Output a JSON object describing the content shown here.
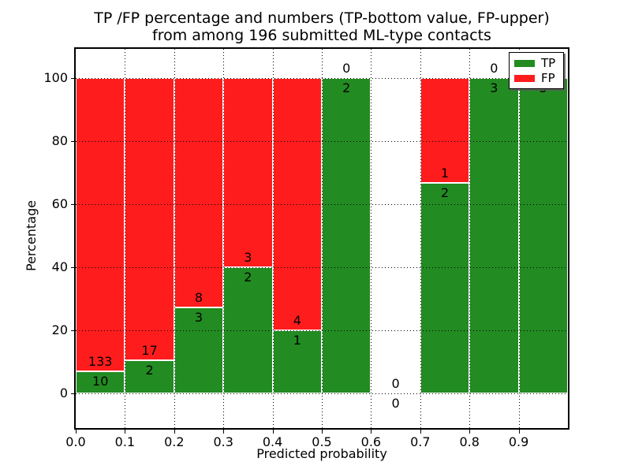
{
  "figure": {
    "title_line1": "TP /FP percentage and numbers (TP-bottom value, FP-upper)",
    "title_line2": "from among 196 submitted ML-type contacts",
    "xlabel": "Predicted probability",
    "ylabel": "Percentage"
  },
  "colors": {
    "tp": "#228b22",
    "fp": "#ff1c1c",
    "grid": "#000000",
    "frame": "#000000",
    "bar_edge": "#ffffff",
    "background": "#ffffff",
    "label_text": "#000000"
  },
  "legend": {
    "position": "upper right",
    "items": [
      {
        "label": "TP",
        "color_key": "tp"
      },
      {
        "label": "FP",
        "color_key": "fp"
      }
    ]
  },
  "chart_data": {
    "type": "bar",
    "stacked": true,
    "title": "TP /FP percentage and numbers (TP-bottom value, FP-upper) from among 196 submitted ML-type contacts",
    "xlabel": "Predicted probability",
    "ylabel": "Percentage",
    "categories": [
      "0.0-0.1",
      "0.1-0.2",
      "0.2-0.3",
      "0.3-0.4",
      "0.4-0.5",
      "0.5-0.6",
      "0.6-0.7",
      "0.7-0.8",
      "0.8-0.9",
      "0.9-1.0"
    ],
    "series": [
      {
        "name": "TP",
        "values": [
          10,
          2,
          3,
          2,
          1,
          2,
          0,
          2,
          3,
          5
        ]
      },
      {
        "name": "FP",
        "values": [
          133,
          17,
          8,
          3,
          4,
          0,
          0,
          1,
          0,
          0
        ]
      }
    ],
    "tp_percent": [
      7.0,
      10.5,
      27.3,
      40.0,
      20.0,
      100.0,
      0.0,
      66.7,
      100.0,
      100.0
    ],
    "x_tick_labels": [
      "0.0",
      "0.1",
      "0.2",
      "0.3",
      "0.4",
      "0.5",
      "0.6",
      "0.7",
      "0.8",
      "0.9"
    ],
    "y_tick_values": [
      0,
      20,
      40,
      60,
      80,
      100
    ],
    "xlim": [
      0.0,
      1.0
    ],
    "ylim": [
      -11,
      110
    ],
    "grid": "dotted",
    "legend_position": "upper right",
    "total_contacts": 196
  }
}
